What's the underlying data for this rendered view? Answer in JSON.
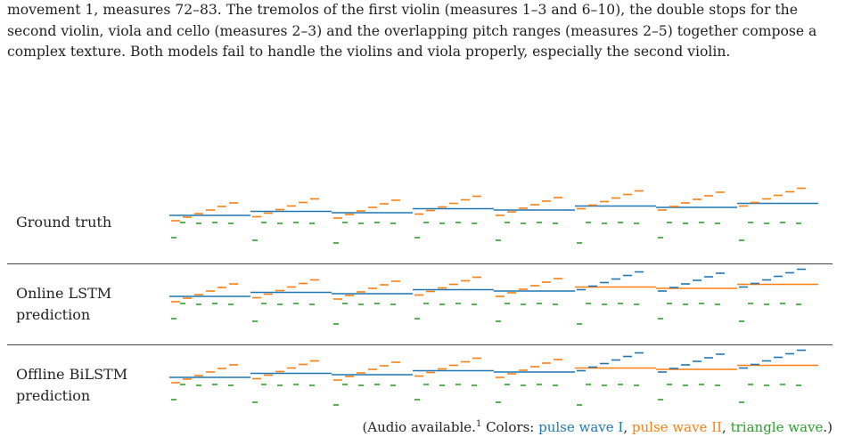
{
  "caption": "movement 1, measures 72–83. The tremolos of the first violin (measures 1–3 and 6–10), the double stops for the second violin, viola and cello (measures 2–3) and the overlapping pitch ranges (measures 2–5) together compose a complex texture. Both models fail to handle the violins and viola properly, especially the second violin.",
  "rows": [
    {
      "label": "Ground truth"
    },
    {
      "label": "Online LSTM prediction"
    },
    {
      "label": "Offline BiLSTM prediction"
    }
  ],
  "footer": {
    "prefix": "(Audio available.",
    "footnote": "1",
    "colors_label": " Colors: ",
    "color1": "pulse wave I",
    "sep1": ", ",
    "color2": "pulse wave II",
    "sep2": ", ",
    "color3": "triangle wave",
    "suffix": ".)"
  }
}
